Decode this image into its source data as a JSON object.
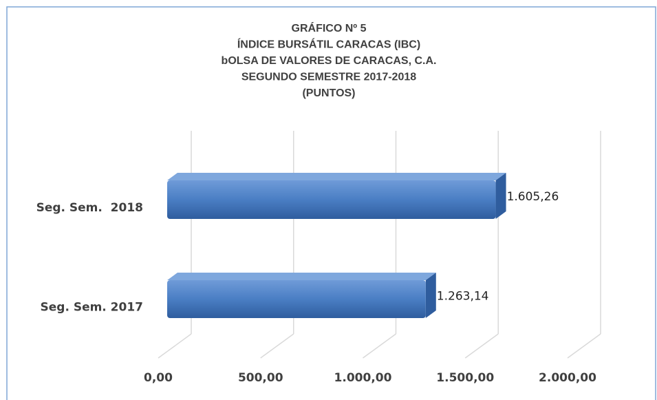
{
  "chart_data": {
    "type": "bar3d_horizontal",
    "title": [
      "GRÁFICO Nº 5",
      "ÍNDICE BURSÁTIL CARACAS (IBC)",
      "bOLSA DE VALORES DE CARACAS, C.A.",
      "SEGUNDO SEMESTRE 2017-2018",
      "(PUNTOS)"
    ],
    "categories": [
      "Seg. Sem. 2017",
      "Seg. Sem.  2018"
    ],
    "values": [
      1263.14,
      1605.26
    ],
    "value_labels": [
      "1.263,14",
      "1.605,26"
    ],
    "color": "#4a7ec4",
    "xlim": [
      0,
      2000
    ],
    "xticks": [
      {
        "value": 0,
        "label": "0,00"
      },
      {
        "value": 500,
        "label": "500,00"
      },
      {
        "value": 1000,
        "label": "1.000,00"
      },
      {
        "value": 1500,
        "label": "1.500,00"
      },
      {
        "value": 2000,
        "label": "2.000,00"
      }
    ],
    "grid": true
  }
}
